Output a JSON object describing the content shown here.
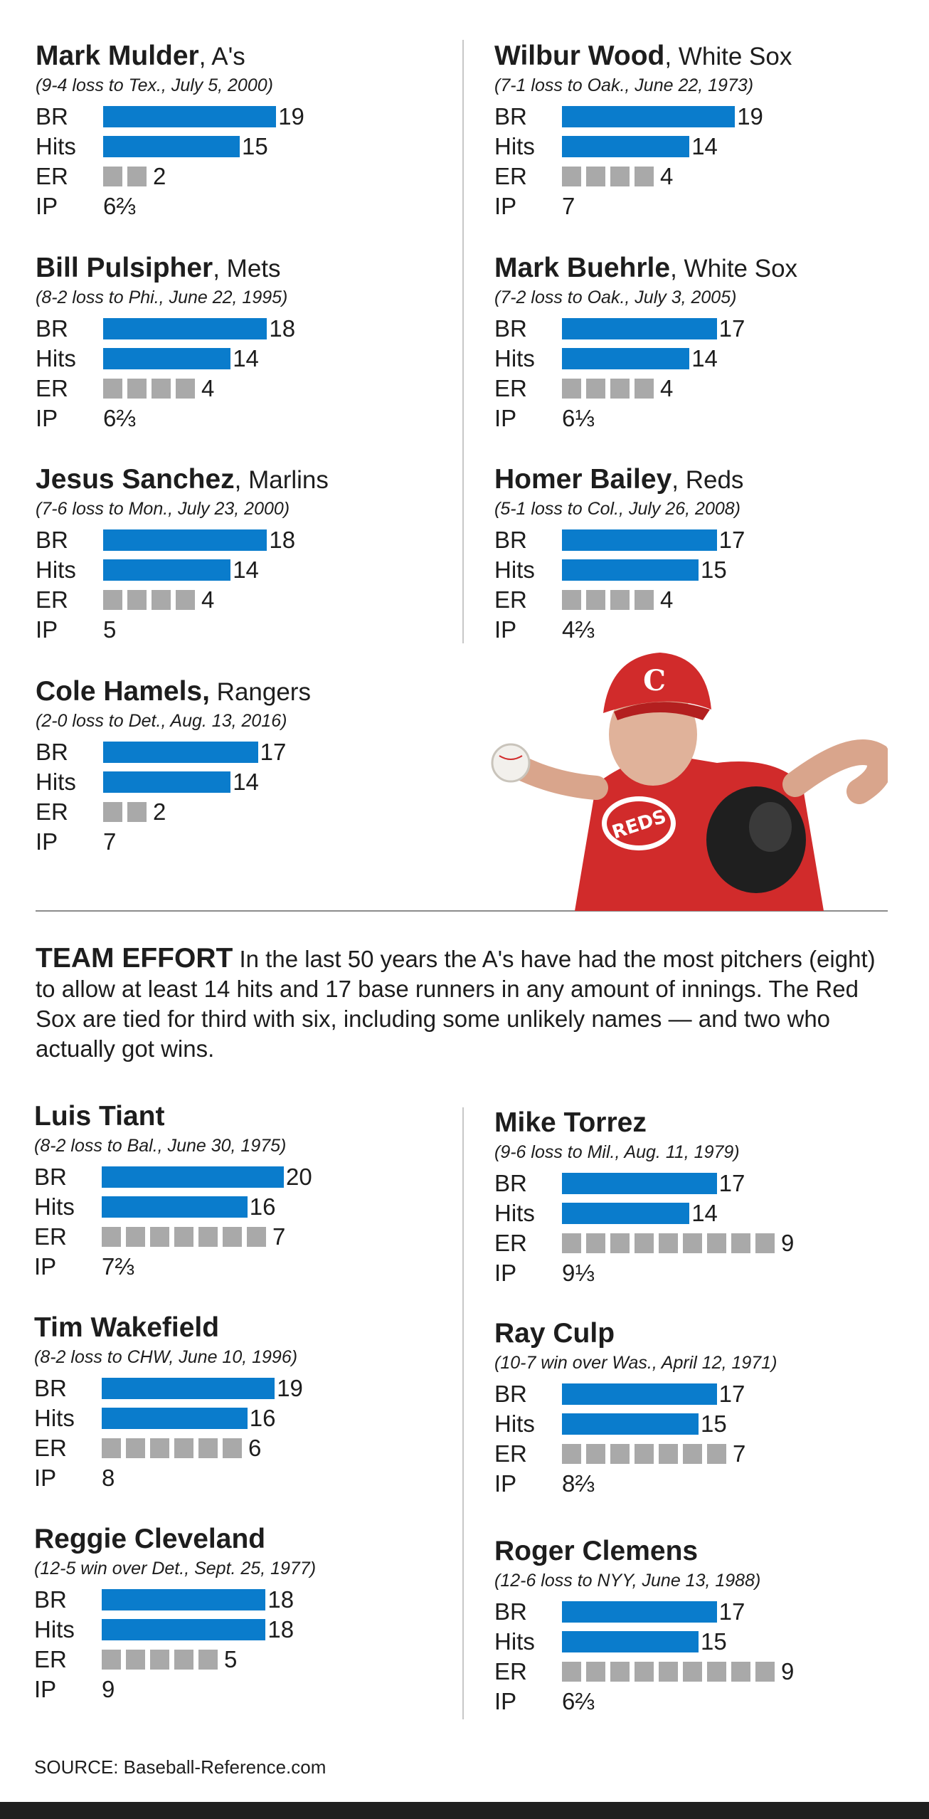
{
  "colors": {
    "bar": "#0a7ccc",
    "er_square": "#a9a9a9",
    "text": "#1d1d1d"
  },
  "labels": {
    "br": "BR",
    "hits": "Hits",
    "er": "ER",
    "ip": "IP"
  },
  "chart_data": [
    {
      "type": "bar",
      "title": "Mark Mulder",
      "team": ", A's",
      "subtitle": "(9-4 loss to Tex., July 5, 2000)",
      "categories": [
        "BR",
        "Hits",
        "ER",
        "IP"
      ],
      "values": [
        19,
        15,
        2,
        6.667
      ],
      "ip_label": "6⅔"
    },
    {
      "type": "bar",
      "title": "Wilbur Wood",
      "team": ", White Sox",
      "subtitle": "(7-1 loss to Oak., June 22, 1973)",
      "categories": [
        "BR",
        "Hits",
        "ER",
        "IP"
      ],
      "values": [
        19,
        14,
        4,
        7
      ],
      "ip_label": "7"
    },
    {
      "type": "bar",
      "title": "Bill Pulsipher",
      "team": ", Mets",
      "subtitle": "(8-2 loss to Phi., June 22, 1995)",
      "categories": [
        "BR",
        "Hits",
        "ER",
        "IP"
      ],
      "values": [
        18,
        14,
        4,
        6.667
      ],
      "ip_label": "6⅔"
    },
    {
      "type": "bar",
      "title": "Mark Buehrle",
      "team": ", White Sox",
      "subtitle": "(7-2 loss to Oak., July 3, 2005)",
      "categories": [
        "BR",
        "Hits",
        "ER",
        "IP"
      ],
      "values": [
        17,
        14,
        4,
        6.333
      ],
      "ip_label": "6⅓"
    },
    {
      "type": "bar",
      "title": "Jesus Sanchez",
      "team": ", Marlins",
      "subtitle": "(7-6 loss to Mon., July 23, 2000)",
      "categories": [
        "BR",
        "Hits",
        "ER",
        "IP"
      ],
      "values": [
        18,
        14,
        4,
        5
      ],
      "ip_label": "5"
    },
    {
      "type": "bar",
      "title": "Homer Bailey",
      "team": ", Reds",
      "subtitle": "(5-1 loss to Col., July 26, 2008)",
      "categories": [
        "BR",
        "Hits",
        "ER",
        "IP"
      ],
      "values": [
        17,
        15,
        4,
        4.667
      ],
      "ip_label": "4⅔"
    },
    {
      "type": "bar",
      "title": "Cole Hamels,",
      "team": " Rangers",
      "subtitle": "(2-0 loss to Det., Aug. 13, 2016)",
      "categories": [
        "BR",
        "Hits",
        "ER",
        "IP"
      ],
      "values": [
        17,
        14,
        2,
        7
      ],
      "ip_label": "7"
    },
    {
      "type": "bar",
      "title": "Luis Tiant",
      "team": "",
      "subtitle": "(8-2 loss to Bal., June 30, 1975)",
      "categories": [
        "BR",
        "Hits",
        "ER",
        "IP"
      ],
      "values": [
        20,
        16,
        7,
        7.667
      ],
      "ip_label": "7⅔"
    },
    {
      "type": "bar",
      "title": "Mike Torrez",
      "team": "",
      "subtitle": "(9-6 loss to Mil., Aug. 11, 1979)",
      "categories": [
        "BR",
        "Hits",
        "ER",
        "IP"
      ],
      "values": [
        17,
        14,
        9,
        9.333
      ],
      "ip_label": "9⅓"
    },
    {
      "type": "bar",
      "title": "Tim Wakefield",
      "team": "",
      "subtitle": "(8-2 loss to CHW, June 10, 1996)",
      "categories": [
        "BR",
        "Hits",
        "ER",
        "IP"
      ],
      "values": [
        19,
        16,
        6,
        8
      ],
      "ip_label": "8"
    },
    {
      "type": "bar",
      "title": "Ray Culp",
      "team": "",
      "subtitle": "(10-7 win over Was., April 12, 1971)",
      "categories": [
        "BR",
        "Hits",
        "ER",
        "IP"
      ],
      "values": [
        17,
        15,
        7,
        8.667
      ],
      "ip_label": "8⅔"
    },
    {
      "type": "bar",
      "title": "Reggie Cleveland",
      "team": "",
      "subtitle": "(12-5 win over Det., Sept. 25, 1977)",
      "categories": [
        "BR",
        "Hits",
        "ER",
        "IP"
      ],
      "values": [
        18,
        18,
        5,
        9
      ],
      "ip_label": "9"
    },
    {
      "type": "bar",
      "title": "Roger Clemens",
      "team": "",
      "subtitle": "(12-6 loss to NYY, June 13, 1988)",
      "categories": [
        "BR",
        "Hits",
        "ER",
        "IP"
      ],
      "values": [
        17,
        15,
        9,
        6.667
      ],
      "ip_label": "6⅔"
    }
  ],
  "team_effort": {
    "heading": "TEAM EFFORT",
    "text": "In the last 50 years the A's have had the most pitchers (eight) to allow at least 14 hits and 17 base runners in any amount of innings. The Red Sox are tied for third with six, including some unlikely names — and two who actually got wins."
  },
  "source": "SOURCE: Baseball-Reference.com",
  "photo": {
    "cap_letter": "C",
    "jersey_text": "REDS"
  }
}
